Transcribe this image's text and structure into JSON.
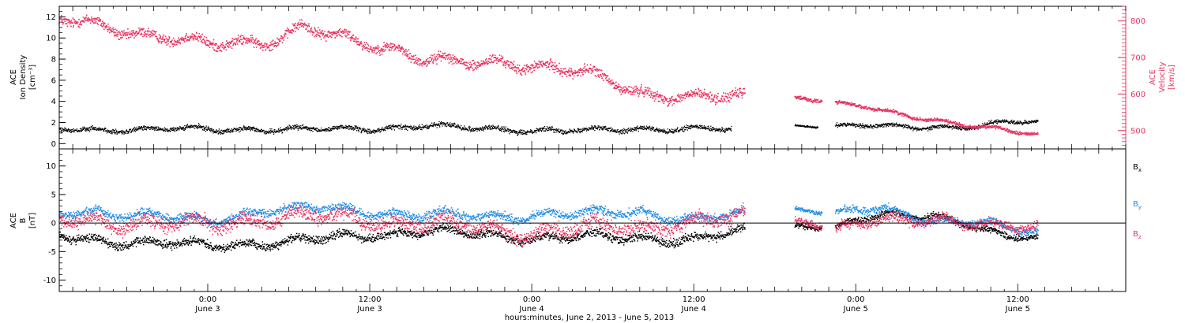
{
  "figure": {
    "x_axis_title": "hours:minutes, June  2, 2013 - June  5, 2013",
    "x_ticks": [
      {
        "time": "0:00",
        "day": "June 3",
        "hour": 24
      },
      {
        "time": "12:00",
        "day": "June 3",
        "hour": 36
      },
      {
        "time": "0:00",
        "day": "June 4",
        "hour": 48
      },
      {
        "time": "12:00",
        "day": "June 4",
        "hour": 60
      },
      {
        "time": "0:00",
        "day": "June 5",
        "hour": 72
      },
      {
        "time": "12:00",
        "day": "June 5",
        "hour": 84
      }
    ],
    "x_range_hours": [
      13,
      92
    ],
    "colors": {
      "black": "#000000",
      "pink": "#e8325f",
      "blue": "#1f8de6"
    }
  },
  "chart_data": [
    {
      "type": "scatter",
      "panel": "top",
      "ylabel_lines": [
        "ACE",
        "Ion Density",
        "[cm⁻³]"
      ],
      "ylim": [
        -0.5,
        13
      ],
      "yticks": [
        0,
        2,
        4,
        6,
        8,
        10,
        12
      ],
      "y2label_lines": [
        "ACE",
        "Velocity",
        "[km/s]"
      ],
      "y2lim": [
        450,
        840
      ],
      "y2ticks": [
        500,
        600,
        700,
        800
      ],
      "series": [
        {
          "axis": "left",
          "color": "#000000",
          "segments": [
            {
              "x": [
                13,
                16,
                20,
                24,
                28,
                32,
                36,
                40,
                44,
                48,
                52,
                56,
                60,
                62.8
              ],
              "y": [
                1.3,
                1.3,
                1.4,
                1.3,
                1.4,
                1.3,
                1.4,
                1.7,
                1.4,
                1.3,
                1.2,
                1.4,
                1.4,
                1.3
              ],
              "spread": 0.5
            },
            {
              "x": [
                67.5,
                69.2
              ],
              "y": [
                1.7,
                1.6
              ],
              "spread": 0.2
            },
            {
              "x": [
                70.5,
                74,
                78,
                81,
                83,
                85.5
              ],
              "y": [
                1.6,
                1.7,
                1.6,
                1.5,
                2.0,
                2.1
              ],
              "spread": 0.4
            }
          ]
        },
        {
          "axis": "right",
          "color": "#e8325f",
          "segments": [
            {
              "x": [
                13,
                15,
                18,
                20,
                22,
                24,
                26,
                28,
                30,
                31,
                33,
                36,
                38,
                40,
                42,
                44,
                46,
                48,
                50,
                52,
                54,
                56,
                58,
                60,
                62,
                63.8
              ],
              "y": [
                800,
                800,
                775,
                755,
                745,
                735,
                745,
                745,
                760,
                780,
                760,
                740,
                725,
                695,
                685,
                680,
                690,
                680,
                670,
                655,
                630,
                605,
                600,
                590,
                590,
                588
              ],
              "spread": 30
            },
            {
              "x": [
                67.5,
                69.5
              ],
              "y": [
                590,
                585
              ],
              "spread": 12
            },
            {
              "x": [
                70.5,
                74,
                76,
                78,
                80,
                82,
                84,
                85.5
              ],
              "y": [
                575,
                555,
                540,
                530,
                515,
                505,
                495,
                490
              ],
              "spread": 10
            }
          ]
        }
      ]
    },
    {
      "type": "scatter",
      "panel": "bottom",
      "ylabel_lines": [
        "ACE",
        "B",
        "[nT]"
      ],
      "ylim": [
        -12,
        13
      ],
      "yticks": [
        -10,
        -5,
        0,
        5,
        10
      ],
      "zero_line": true,
      "series": [
        {
          "name": "Bx",
          "label": "B",
          "sub": "x",
          "color": "#000000",
          "segments": [
            {
              "x": [
                13,
                16,
                20,
                24,
                28,
                32,
                36,
                40,
                44,
                48,
                52,
                56,
                60,
                63.8
              ],
              "y": [
                -2.5,
                -3.0,
                -3.5,
                -4.0,
                -3.5,
                -3.0,
                -2.0,
                -1.5,
                -2.0,
                -2.5,
                -2.5,
                -2.5,
                -3.0,
                -1.5
              ],
              "spread": 1.6
            },
            {
              "x": [
                67.5,
                69.5
              ],
              "y": [
                -0.5,
                -0.5
              ],
              "spread": 1.0
            },
            {
              "x": [
                70.5,
                74,
                78,
                81,
                83,
                85.5
              ],
              "y": [
                -1.0,
                1.5,
                1.5,
                -1.0,
                -2.5,
                -2.5
              ],
              "spread": 1.2
            }
          ]
        },
        {
          "name": "By",
          "label": "B",
          "sub": "y",
          "color": "#1f8de6",
          "segments": [
            {
              "x": [
                13,
                16,
                20,
                24,
                28,
                32,
                36,
                40,
                44,
                48,
                52,
                56,
                60,
                63.8
              ],
              "y": [
                1.5,
                2.0,
                1.5,
                0.0,
                2.5,
                2.5,
                2.0,
                1.5,
                1.0,
                1.5,
                1.5,
                2.0,
                0.5,
                1.5
              ],
              "spread": 1.6
            },
            {
              "x": [
                67.5,
                69.5
              ],
              "y": [
                2.5,
                2.0
              ],
              "spread": 0.8
            },
            {
              "x": [
                70.5,
                74,
                78,
                81,
                83,
                85.5
              ],
              "y": [
                1.5,
                2.5,
                0.5,
                0.0,
                -1.0,
                -1.5
              ],
              "spread": 1.4
            }
          ]
        },
        {
          "name": "Bz",
          "label": "B",
          "sub": "z",
          "color": "#e8325f",
          "segments": [
            {
              "x": [
                13,
                16,
                20,
                24,
                28,
                32,
                36,
                40,
                44,
                48,
                52,
                56,
                60,
                63.8
              ],
              "y": [
                0.5,
                0.5,
                0.0,
                -0.5,
                1.0,
                1.0,
                0.5,
                0.0,
                -1.0,
                -1.5,
                -1.0,
                -0.5,
                0.0,
                1.0
              ],
              "spread": 2.6
            },
            {
              "x": [
                67.5,
                69.5
              ],
              "y": [
                0.5,
                0.0
              ],
              "spread": 1.5
            },
            {
              "x": [
                70.5,
                74,
                78,
                81,
                83,
                85.5
              ],
              "y": [
                -1.5,
                0.5,
                1.0,
                -0.5,
                -1.0,
                -0.5
              ],
              "spread": 1.8
            }
          ]
        }
      ]
    }
  ]
}
